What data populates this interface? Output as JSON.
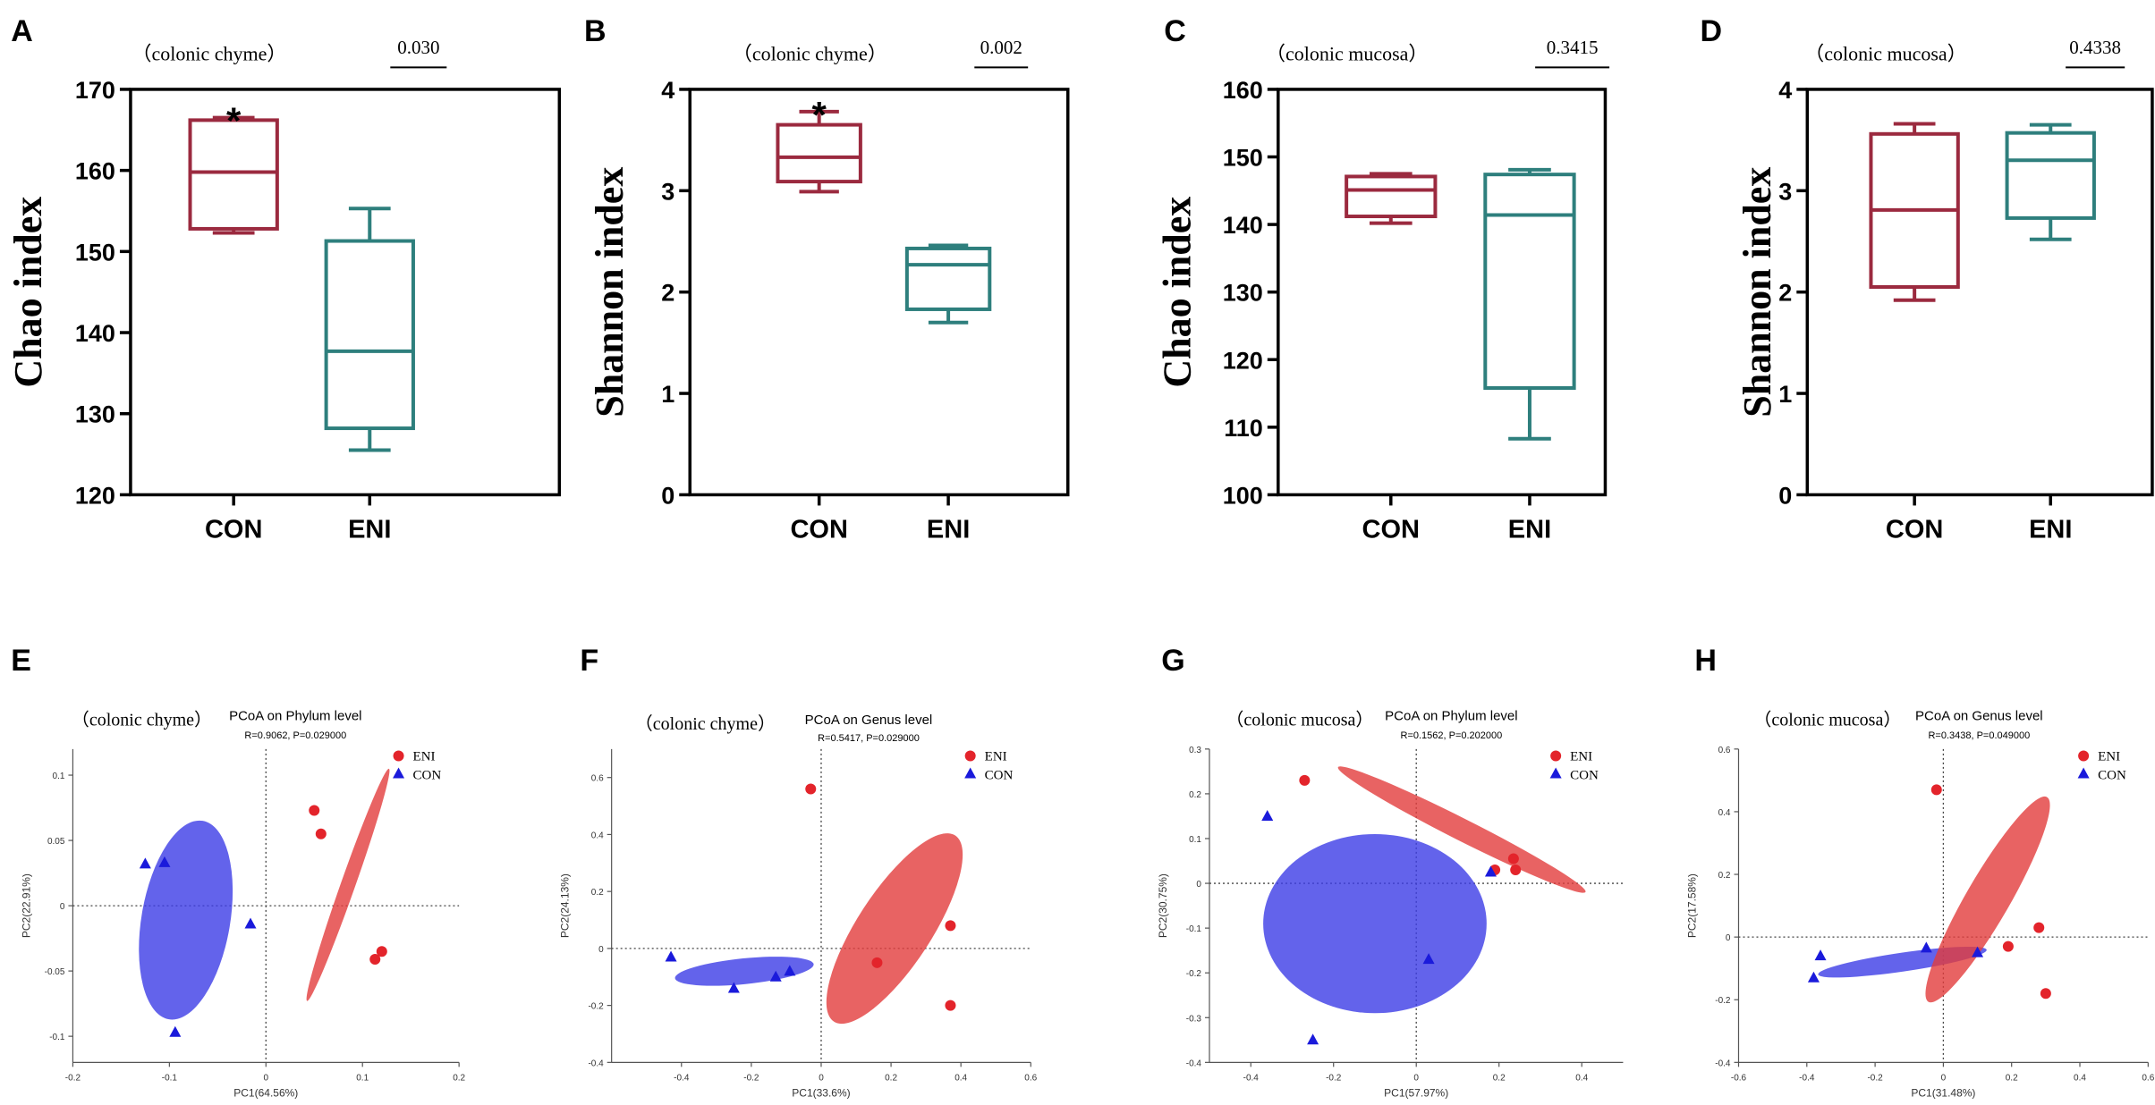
{
  "colors": {
    "CON_box": "#9b2a3f",
    "ENI_box": "#2e7f7d",
    "ENI_point": "#e3242b",
    "CON_point": "#1a1adb",
    "ENI_ellipse": "#e23c3c",
    "CON_ellipse": "#3c3ce6"
  },
  "chart_data": [
    {
      "id": "A",
      "type": "box",
      "panel_label": "A",
      "subtitle": "（colonic chyme）",
      "significance": "0.030",
      "ylabel": "Chao index",
      "ylim": [
        120,
        170
      ],
      "yticks": [
        120,
        130,
        140,
        150,
        160,
        170
      ],
      "categories": [
        "CON",
        "ENI"
      ],
      "series": [
        {
          "name": "CON",
          "min": 152.3,
          "q1": 152.8,
          "median": 159.8,
          "q3": 166.2,
          "max": 166.5,
          "marker": "*"
        },
        {
          "name": "ENI",
          "min": 125.5,
          "q1": 128.2,
          "median": 137.7,
          "q3": 151.3,
          "max": 155.3,
          "marker": ""
        }
      ]
    },
    {
      "id": "B",
      "type": "box",
      "panel_label": "B",
      "subtitle": "（colonic chyme）",
      "significance": "0.002",
      "ylabel": "Shannon index",
      "ylim": [
        0,
        4
      ],
      "yticks": [
        0,
        1,
        2,
        3,
        4
      ],
      "categories": [
        "CON",
        "ENI"
      ],
      "series": [
        {
          "name": "CON",
          "min": 2.99,
          "q1": 3.09,
          "median": 3.33,
          "q3": 3.65,
          "max": 3.78,
          "marker": "*"
        },
        {
          "name": "ENI",
          "min": 1.7,
          "q1": 1.83,
          "median": 2.27,
          "q3": 2.43,
          "max": 2.46,
          "marker": ""
        }
      ]
    },
    {
      "id": "C",
      "type": "box",
      "panel_label": "C",
      "subtitle": "（colonic mucosa）",
      "significance": "0.3415",
      "ylabel": "Chao index",
      "ylim": [
        100,
        160
      ],
      "yticks": [
        100,
        110,
        120,
        130,
        140,
        150,
        160
      ],
      "categories": [
        "CON",
        "ENI"
      ],
      "series": [
        {
          "name": "CON",
          "min": 140.2,
          "q1": 141.2,
          "median": 145.1,
          "q3": 147.1,
          "max": 147.5,
          "marker": ""
        },
        {
          "name": "ENI",
          "min": 108.3,
          "q1": 115.8,
          "median": 141.4,
          "q3": 147.4,
          "max": 148.1,
          "marker": ""
        }
      ]
    },
    {
      "id": "D",
      "type": "box",
      "panel_label": "D",
      "subtitle": "（colonic mucosa）",
      "significance": "0.4338",
      "ylabel": "Shannon index",
      "ylim": [
        0,
        4
      ],
      "yticks": [
        0,
        1,
        2,
        3,
        4
      ],
      "categories": [
        "CON",
        "ENI"
      ],
      "series": [
        {
          "name": "CON",
          "min": 1.92,
          "q1": 2.05,
          "median": 2.81,
          "q3": 3.56,
          "max": 3.66,
          "marker": ""
        },
        {
          "name": "ENI",
          "min": 2.52,
          "q1": 2.73,
          "median": 3.3,
          "q3": 3.57,
          "max": 3.65,
          "marker": ""
        }
      ]
    },
    {
      "id": "E",
      "type": "scatter",
      "panel_label": "E",
      "subtitle": "（colonic chyme）",
      "title": "PCoA on Phylum level",
      "stats": "R=0.9062, P=0.029000",
      "xlabel": "PC1(64.56%)",
      "ylabel": "PC2(22.91%)",
      "xlim": [
        -0.2,
        0.2
      ],
      "ylim": [
        -0.12,
        0.12
      ],
      "xticks": [
        -0.2,
        -0.1,
        0,
        0.1,
        0.2
      ],
      "xtick_labels": [
        "-0.2",
        "-0.1",
        "0",
        "0.1",
        "0.2"
      ],
      "yticks": [
        -0.1,
        -0.05,
        0,
        0.05,
        0.1
      ],
      "ytick_labels": [
        "-0.1",
        "-0.05",
        "0",
        "0.05",
        "0.1"
      ],
      "legend": [
        "ENI",
        "CON"
      ],
      "series": [
        {
          "name": "ENI",
          "points": [
            [
              0.05,
              0.073
            ],
            [
              0.057,
              0.055
            ],
            [
              0.113,
              -0.041
            ],
            [
              0.12,
              -0.035
            ]
          ],
          "ellipse": {
            "cx": 0.085,
            "cy": 0.016,
            "rx": 0.0985,
            "ry": 0.007,
            "angle": 64.5
          }
        },
        {
          "name": "CON",
          "points": [
            [
              -0.125,
              0.032
            ],
            [
              -0.105,
              0.033
            ],
            [
              -0.016,
              -0.014
            ],
            [
              -0.094,
              -0.097
            ]
          ],
          "ellipse": {
            "cx": -0.083,
            "cy": -0.011,
            "rx": 0.078,
            "ry": 0.045,
            "angle": 77
          }
        }
      ]
    },
    {
      "id": "F",
      "type": "scatter",
      "panel_label": "F",
      "subtitle": "（colonic chyme）",
      "title": "PCoA on Genus level",
      "stats": "R=0.5417, P=0.029000",
      "xlabel": "PC1(33.6%)",
      "ylabel": "PC2(24.13%)",
      "xlim": [
        -0.6,
        0.6
      ],
      "ylim": [
        -0.4,
        0.7
      ],
      "xticks": [
        -0.4,
        -0.2,
        0,
        0.2,
        0.4,
        0.6
      ],
      "xtick_labels": [
        "-0.4",
        "-0.2",
        "0",
        "0.2",
        "0.4",
        "0.6"
      ],
      "yticks": [
        -0.4,
        -0.2,
        0,
        0.2,
        0.4,
        0.6
      ],
      "ytick_labels": [
        "-0.4",
        "-0.2",
        "0",
        "0.2",
        "0.4",
        "0.6"
      ],
      "legend": [
        "ENI",
        "CON"
      ],
      "series": [
        {
          "name": "ENI",
          "points": [
            [
              -0.03,
              0.56
            ],
            [
              0.16,
              -0.05
            ],
            [
              0.37,
              0.08
            ],
            [
              0.37,
              -0.2
            ]
          ],
          "ellipse": {
            "cx": 0.21,
            "cy": 0.07,
            "rx": 0.37,
            "ry": 0.11,
            "angle": 62
          }
        },
        {
          "name": "CON",
          "points": [
            [
              -0.43,
              -0.03
            ],
            [
              -0.25,
              -0.14
            ],
            [
              -0.13,
              -0.1
            ],
            [
              -0.09,
              -0.08
            ]
          ],
          "ellipse": {
            "cx": -0.22,
            "cy": -0.08,
            "rx": 0.2,
            "ry": 0.045,
            "angle": 7
          }
        }
      ]
    },
    {
      "id": "G",
      "type": "scatter",
      "panel_label": "G",
      "subtitle": "（colonic mucosa）",
      "title": "PCoA on Phylum level",
      "stats": "R=0.1562, P=0.202000",
      "xlabel": "PC1(57.97%)",
      "ylabel": "PC2(30.75%)",
      "xlim": [
        -0.5,
        0.5
      ],
      "ylim": [
        -0.4,
        0.3
      ],
      "xticks": [
        -0.4,
        -0.2,
        0,
        0.2,
        0.4
      ],
      "xtick_labels": [
        "-0.4",
        "-0.2",
        "0",
        "0.2",
        "0.4"
      ],
      "yticks": [
        -0.4,
        -0.3,
        -0.2,
        -0.1,
        0,
        0.1,
        0.2,
        0.3
      ],
      "ytick_labels": [
        "-0.4",
        "-0.3",
        "-0.2",
        "-0.1",
        "0",
        "0.1",
        "0.2",
        "0.3"
      ],
      "legend": [
        "ENI",
        "CON"
      ],
      "series": [
        {
          "name": "ENI",
          "points": [
            [
              -0.27,
              0.23
            ],
            [
              0.235,
              0.055
            ],
            [
              0.24,
              0.03
            ],
            [
              0.19,
              0.03
            ]
          ],
          "ellipse": {
            "cx": 0.11,
            "cy": 0.12,
            "rx": 0.33,
            "ry": 0.025,
            "angle": -25
          }
        },
        {
          "name": "CON",
          "points": [
            [
              -0.36,
              0.15
            ],
            [
              0.03,
              -0.17
            ],
            [
              -0.25,
              -0.35
            ],
            [
              0.18,
              0.025
            ]
          ],
          "ellipse": {
            "cx": -0.1,
            "cy": -0.09,
            "rx": 0.27,
            "ry": 0.2,
            "angle": 0
          }
        }
      ]
    },
    {
      "id": "H",
      "type": "scatter",
      "panel_label": "H",
      "subtitle": "（colonic mucosa）",
      "title": "PCoA on Genus level",
      "stats": "R=0.3438, P=0.049000",
      "xlabel": "PC1(31.48%)",
      "ylabel": "PC2(17.58%)",
      "xlim": [
        -0.6,
        0.6
      ],
      "ylim": [
        -0.4,
        0.6
      ],
      "xticks": [
        -0.6,
        -0.4,
        -0.2,
        0,
        0.2,
        0.4,
        0.6
      ],
      "xtick_labels": [
        "-0.6",
        "-0.4",
        "-0.2",
        "0",
        "0.2",
        "0.4",
        "0.6"
      ],
      "yticks": [
        -0.4,
        -0.2,
        0,
        0.2,
        0.4,
        0.6
      ],
      "ytick_labels": [
        "-0.4",
        "-0.2",
        "0",
        "0.2",
        "0.4",
        "0.6"
      ],
      "legend": [
        "ENI",
        "CON"
      ],
      "series": [
        {
          "name": "ENI",
          "points": [
            [
              -0.02,
              0.47
            ],
            [
              0.19,
              -0.03
            ],
            [
              0.28,
              0.03
            ],
            [
              0.3,
              -0.18
            ]
          ],
          "ellipse": {
            "cx": 0.13,
            "cy": 0.12,
            "rx": 0.37,
            "ry": 0.065,
            "angle": 62
          }
        },
        {
          "name": "CON",
          "points": [
            [
              -0.38,
              -0.13
            ],
            [
              -0.36,
              -0.06
            ],
            [
              -0.05,
              -0.035
            ],
            [
              0.1,
              -0.05
            ]
          ],
          "ellipse": {
            "cx": -0.12,
            "cy": -0.08,
            "rx": 0.25,
            "ry": 0.03,
            "angle": 9
          }
        }
      ]
    }
  ]
}
